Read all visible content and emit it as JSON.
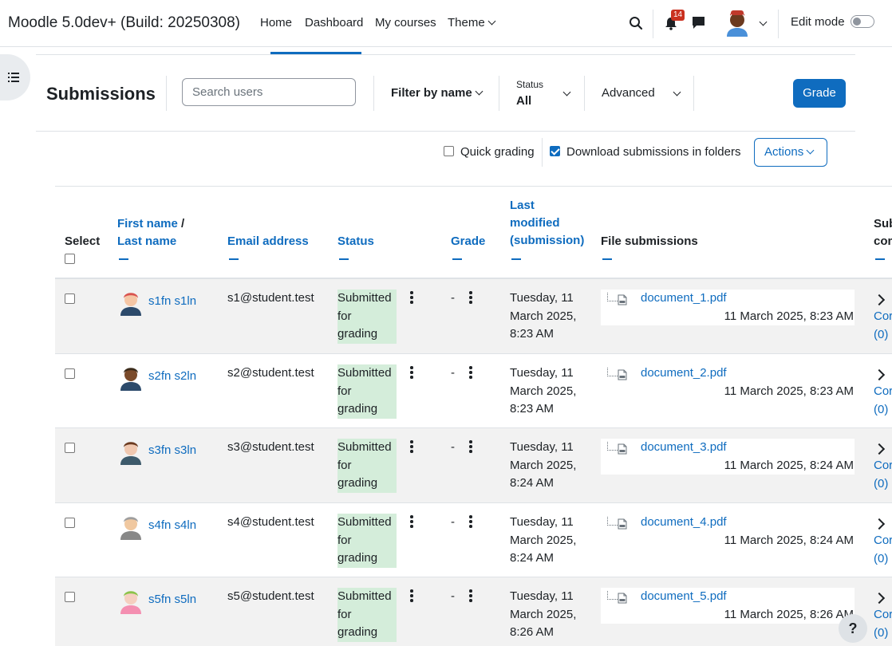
{
  "navbar": {
    "site_title": "Moodle 5.0dev+ (Build: 20250308)",
    "items": [
      "Home",
      "Dashboard",
      "My courses",
      "Theme"
    ],
    "notification_count": "14",
    "edit_mode_label": "Edit mode",
    "edit_mode_on": false
  },
  "toolbar": {
    "title": "Submissions",
    "search_placeholder": "Search users",
    "filter_label": "Filter by name",
    "status_label": "Status",
    "status_value": "All",
    "advanced_label": "Advanced",
    "grade_label": "Grade"
  },
  "options": {
    "quick_grading": "Quick grading",
    "quick_grading_checked": false,
    "download_folders": "Download submissions in folders",
    "download_folders_checked": true,
    "actions_label": "Actions"
  },
  "table": {
    "headers": {
      "select": "Select",
      "first_name": "First name",
      "slash": "/",
      "last_name": "Last name",
      "email": "Email address",
      "status": "Status",
      "grade": "Grade",
      "last_modified_1": "Last",
      "last_modified_2": "modified",
      "last_modified_3": "(submission)",
      "file_submissions": "File submissions",
      "submission_comments_1": "Sub",
      "submission_comments_2": "com"
    },
    "rows": [
      {
        "name": "s1fn s1ln",
        "email": "s1@student.test",
        "status": [
          "Submitted",
          "for",
          "grading"
        ],
        "grade": "-",
        "modified": [
          "Tuesday, 11",
          "March 2025,",
          "8:23 AM"
        ],
        "file": "document_1.pdf",
        "file_date": "11 March 2025, 8:23 AM",
        "comments": [
          "Cor",
          "(0)"
        ]
      },
      {
        "name": "s2fn s2ln",
        "email": "s2@student.test",
        "status": [
          "Submitted",
          "for",
          "grading"
        ],
        "grade": "-",
        "modified": [
          "Tuesday, 11",
          "March 2025,",
          "8:23 AM"
        ],
        "file": "document_2.pdf",
        "file_date": "11 March 2025, 8:23 AM",
        "comments": [
          "Cor",
          "(0)"
        ]
      },
      {
        "name": "s3fn s3ln",
        "email": "s3@student.test",
        "status": [
          "Submitted",
          "for",
          "grading"
        ],
        "grade": "-",
        "modified": [
          "Tuesday, 11",
          "March 2025,",
          "8:24 AM"
        ],
        "file": "document_3.pdf",
        "file_date": "11 March 2025, 8:24 AM",
        "comments": [
          "Cor",
          "(0)"
        ]
      },
      {
        "name": "s4fn s4ln",
        "email": "s4@student.test",
        "status": [
          "Submitted",
          "for",
          "grading"
        ],
        "grade": "-",
        "modified": [
          "Tuesday, 11",
          "March 2025,",
          "8:24 AM"
        ],
        "file": "document_4.pdf",
        "file_date": "11 March 2025, 8:24 AM",
        "comments": [
          "Cor",
          "(0)"
        ]
      },
      {
        "name": "s5fn s5ln",
        "email": "s5@student.test",
        "status": [
          "Submitted",
          "for",
          "grading"
        ],
        "grade": "-",
        "modified": [
          "Tuesday, 11",
          "March 2025,",
          "8:26 AM"
        ],
        "file": "document_5.pdf",
        "file_date": "11 March 2025, 8:26 AM",
        "comments": [
          "Cor",
          "(0)"
        ]
      }
    ]
  },
  "help_label": "?",
  "colors": {
    "brand": "#0f6cbf",
    "status_bg": "#d4edda",
    "badge": "#ca3120",
    "row_shade": "#f2f2f2"
  },
  "icons": [
    "list-icon",
    "search-icon",
    "bell-icon",
    "chat-icon",
    "avatar",
    "pdf-file-icon",
    "kebab-menu-icon",
    "chevron-right-icon",
    "chevron-down-icon"
  ]
}
